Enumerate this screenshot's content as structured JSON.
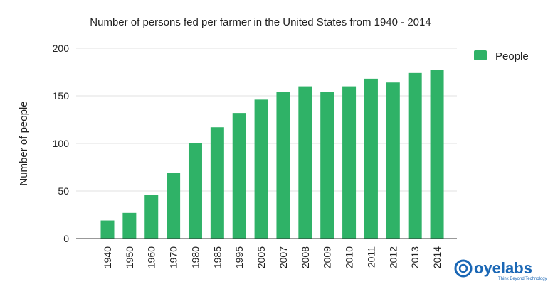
{
  "chart_data": {
    "type": "bar",
    "title": "Number of persons fed per farmer in the United States from 1940 - 2014",
    "xlabel": "",
    "ylabel": "Number of people",
    "categories": [
      "1940",
      "1950",
      "1960",
      "1970",
      "1980",
      "1985",
      "1995",
      "2005",
      "2007",
      "2008",
      "2009",
      "2010",
      "2011",
      "2012",
      "2013",
      "2014"
    ],
    "series": [
      {
        "name": "People",
        "values": [
          19,
          27,
          46,
          69,
          100,
          117,
          132,
          146,
          154,
          160,
          154,
          160,
          168,
          164,
          174,
          177
        ]
      }
    ],
    "ylim": [
      0,
      200
    ],
    "yticks": [
      0,
      50,
      100,
      150,
      200
    ],
    "grid": true,
    "legend": "right",
    "colors": {
      "bar": "#2fb267",
      "grid": "#e0e0e0",
      "axis": "#333333"
    }
  },
  "logo": {
    "name": "oyelabs",
    "tagline": "Think Beyond Technology",
    "color": "#1a67b5"
  }
}
